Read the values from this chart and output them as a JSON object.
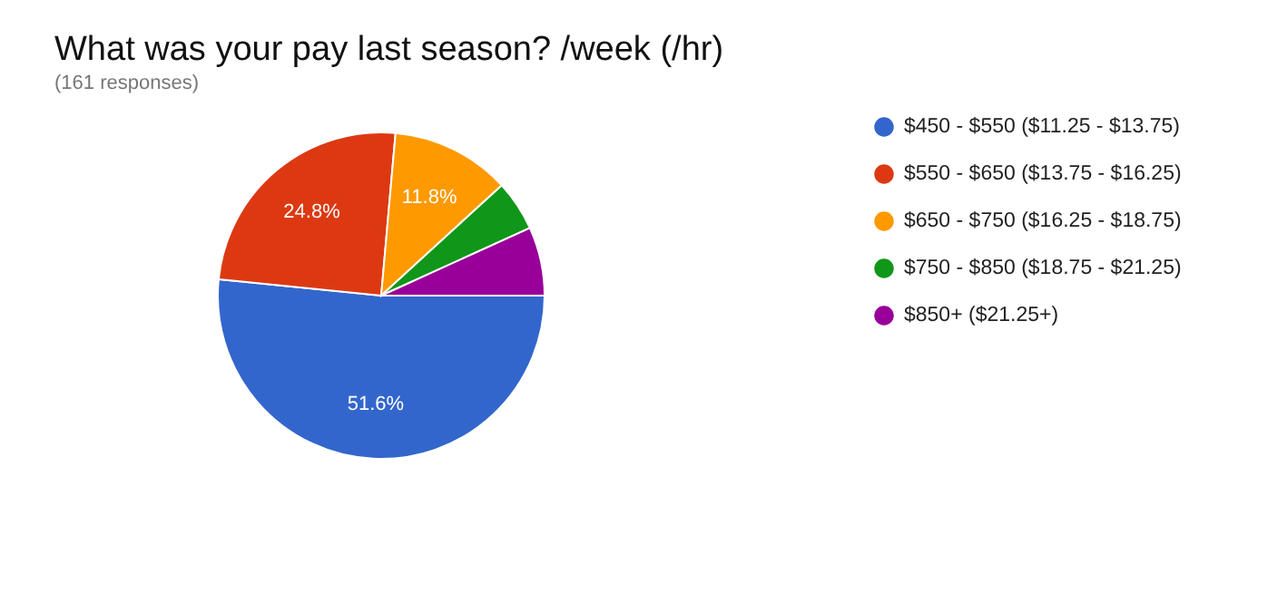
{
  "chart_data": {
    "type": "pie",
    "title": "What was your pay last season? /week (/hr)",
    "subtitle": "(161 responses)",
    "categories": [
      "$450 - $550 ($11.25 - $13.75)",
      "$550 - $650 ($13.75 - $16.25)",
      "$650 - $750 ($16.25 - $18.75)",
      "$750 - $850 ($18.75 - $21.25)",
      "$850+ ($21.25+)"
    ],
    "values": [
      51.6,
      24.8,
      11.8,
      5.0,
      6.8
    ],
    "colors": [
      "#3366cc",
      "#dc3912",
      "#ff9900",
      "#109618",
      "#990099"
    ],
    "value_labels": [
      "51.6%",
      "24.8%",
      "11.8%",
      null,
      null
    ],
    "legend": "right"
  }
}
